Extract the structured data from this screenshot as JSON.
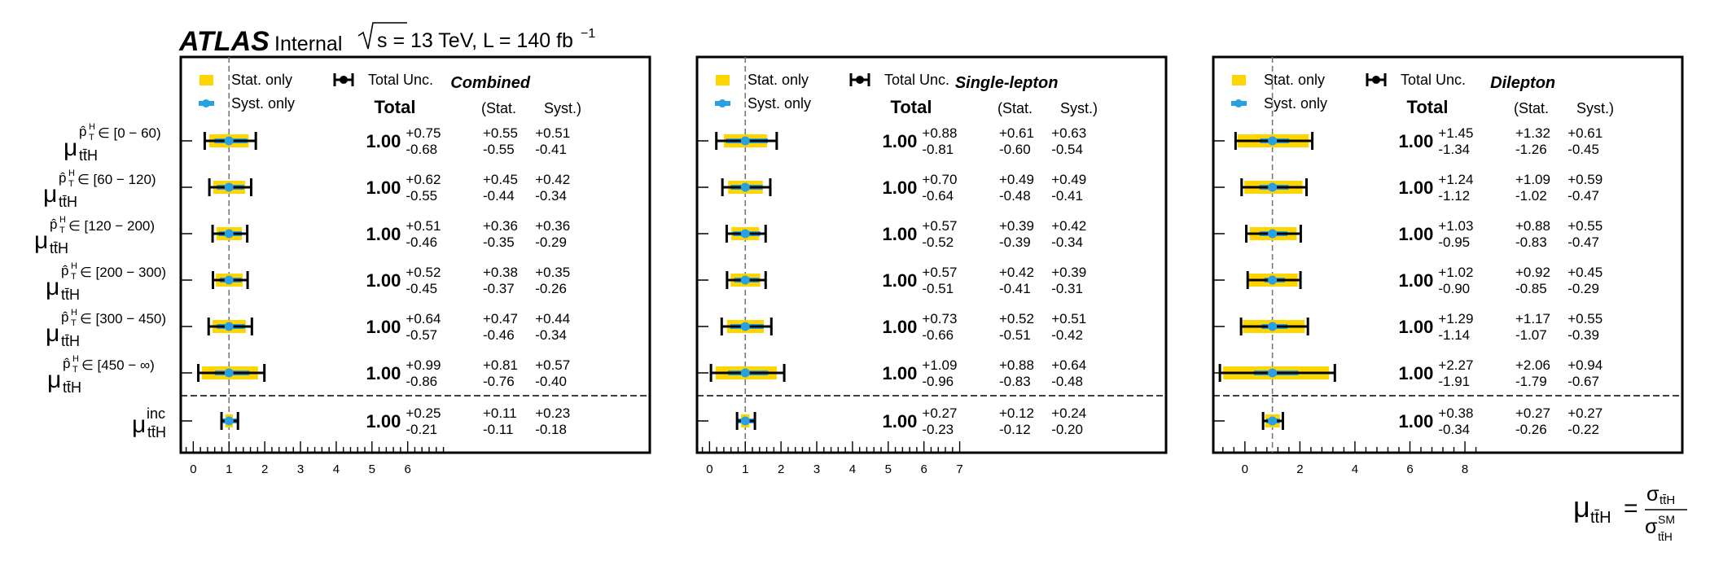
{
  "header": {
    "experiment": "ATLAS",
    "status": "Internal",
    "energy": "s = 13 TeV, L = 140 fb",
    "lumi_exp": "−1"
  },
  "legend": {
    "stat_only": "Stat. only",
    "total_unc": "Total Unc.",
    "syst_only": "Syst. only"
  },
  "columns": {
    "total": "Total",
    "stat": "(Stat.",
    "syst": "Syst.)"
  },
  "x_axis_label": {
    "mu": "μ",
    "sub": "tt̄H",
    "eq": "=",
    "num": "σ",
    "num_sub": "tt̄H",
    "den": "σ",
    "den_sup": "SM",
    "den_sub": "tt̄H"
  },
  "row_labels": [
    {
      "mu": "μ",
      "sub": "tt̄H",
      "sup": "p̂T H ∈ [0 − 60)",
      "pt": "p̂",
      "T": "T",
      "H": "H",
      "range": "∈ [0 − 60)"
    },
    {
      "mu": "μ",
      "sub": "tt̄H",
      "pt": "p̂",
      "T": "T",
      "H": "H",
      "range": "∈ [60 − 120)"
    },
    {
      "mu": "μ",
      "sub": "tt̄H",
      "pt": "p̂",
      "T": "T",
      "H": "H",
      "range": "∈ [120 − 200)"
    },
    {
      "mu": "μ",
      "sub": "tt̄H",
      "pt": "p̂",
      "T": "T",
      "H": "H",
      "range": "∈ [200 − 300)"
    },
    {
      "mu": "μ",
      "sub": "tt̄H",
      "pt": "p̂",
      "T": "T",
      "H": "H",
      "range": "∈ [300 − 450)"
    },
    {
      "mu": "μ",
      "sub": "tt̄H",
      "pt": "p̂",
      "T": "T",
      "H": "H",
      "range": "∈ [450 − ∞)"
    },
    {
      "mu": "μ",
      "sub": "tt̄H",
      "inc": "inc"
    }
  ],
  "chart_data": [
    {
      "type": "scatter",
      "title": "Combined",
      "xlim": [
        -0.35,
        7.0
      ],
      "xticks": [
        0,
        1,
        2,
        3,
        4,
        5,
        6
      ],
      "reference_line": 1,
      "categories": [
        "[0-60)",
        "[60-120)",
        "[120-200)",
        "[200-300)",
        "[300-450)",
        "[450-inf)",
        "inc"
      ],
      "central": [
        1.0,
        1.0,
        1.0,
        1.0,
        1.0,
        1.0,
        1.0
      ],
      "total_up": [
        0.75,
        0.62,
        0.51,
        0.52,
        0.64,
        0.99,
        0.25
      ],
      "total_down": [
        0.68,
        0.55,
        0.46,
        0.45,
        0.57,
        0.86,
        0.21
      ],
      "stat_up": [
        0.55,
        0.45,
        0.36,
        0.38,
        0.47,
        0.81,
        0.11
      ],
      "stat_down": [
        0.55,
        0.44,
        0.35,
        0.37,
        0.46,
        0.76,
        0.11
      ],
      "syst_up": [
        0.51,
        0.42,
        0.36,
        0.35,
        0.44,
        0.57,
        0.23
      ],
      "syst_down": [
        0.41,
        0.34,
        0.29,
        0.26,
        0.34,
        0.4,
        0.18
      ]
    },
    {
      "type": "scatter",
      "title": "Single-lepton",
      "xlim": [
        -0.35,
        7.0
      ],
      "xticks": [
        0,
        1,
        2,
        3,
        4,
        5,
        6,
        7
      ],
      "reference_line": 1,
      "categories": [
        "[0-60)",
        "[60-120)",
        "[120-200)",
        "[200-300)",
        "[300-450)",
        "[450-inf)",
        "inc"
      ],
      "central": [
        1.0,
        1.0,
        1.0,
        1.0,
        1.0,
        1.0,
        1.0
      ],
      "total_up": [
        0.88,
        0.7,
        0.57,
        0.57,
        0.73,
        1.09,
        0.27
      ],
      "total_down": [
        0.81,
        0.64,
        0.52,
        0.51,
        0.66,
        0.96,
        0.23
      ],
      "stat_up": [
        0.61,
        0.49,
        0.39,
        0.42,
        0.52,
        0.88,
        0.12
      ],
      "stat_down": [
        0.6,
        0.48,
        0.39,
        0.41,
        0.51,
        0.83,
        0.12
      ],
      "syst_up": [
        0.63,
        0.49,
        0.42,
        0.39,
        0.51,
        0.64,
        0.24
      ],
      "syst_down": [
        0.54,
        0.41,
        0.34,
        0.31,
        0.42,
        0.48,
        0.2
      ]
    },
    {
      "type": "scatter",
      "title": "Dilepton",
      "xlim": [
        -1.15,
        8.4
      ],
      "xticks": [
        0,
        2,
        4,
        6,
        8
      ],
      "reference_line": 1,
      "categories": [
        "[0-60)",
        "[60-120)",
        "[120-200)",
        "[200-300)",
        "[300-450)",
        "[450-inf)",
        "inc"
      ],
      "central": [
        1.0,
        1.0,
        1.0,
        1.0,
        1.0,
        1.0,
        1.0
      ],
      "total_up": [
        1.45,
        1.24,
        1.03,
        1.02,
        1.29,
        2.27,
        0.38
      ],
      "total_down": [
        1.34,
        1.12,
        0.95,
        0.9,
        1.14,
        1.91,
        0.34
      ],
      "stat_up": [
        1.32,
        1.09,
        0.88,
        0.92,
        1.17,
        2.06,
        0.27
      ],
      "stat_down": [
        1.26,
        1.02,
        0.83,
        0.85,
        1.07,
        1.79,
        0.26
      ],
      "syst_up": [
        0.61,
        0.59,
        0.55,
        0.45,
        0.55,
        0.94,
        0.27
      ],
      "syst_down": [
        0.45,
        0.47,
        0.47,
        0.29,
        0.39,
        0.67,
        0.22
      ]
    }
  ],
  "display": {
    "central_text": "1.00",
    "colors": {
      "stat": "#ffd500",
      "syst": "#2aa0e0",
      "total": "#000000",
      "ref": "#777777"
    }
  }
}
